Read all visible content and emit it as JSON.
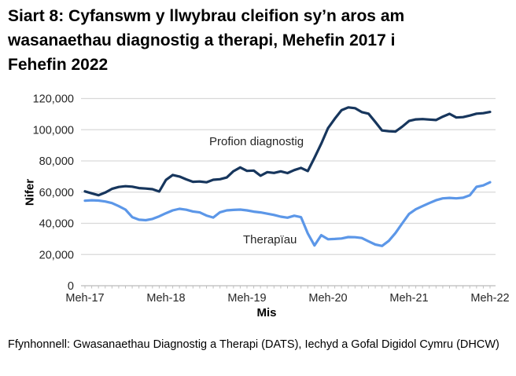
{
  "page": {
    "title": "Siart 8: Cyfanswm y llwybrau cleifion sy’n aros am wasanaethau diagnostig a therapi, Mehefin 2017 i Fehefin 2022",
    "source_note": "Ffynhonnell: Gwasanaethau Diagnostig a Therapi (DATS), Iechyd a Gofal Digidol Cymru (DHCW)"
  },
  "chart_data": {
    "type": "line",
    "title": "Siart 8: Cyfanswm y llwybrau cleifion sy’n aros am wasanaethau diagnostig a therapi, Mehefin 2017 i Fehefin 2022",
    "xlabel": "Mis",
    "ylabel": "Nifer",
    "ylim": [
      0,
      120000
    ],
    "grid": "horizontal",
    "legend_position": "inline-annotations",
    "x_unit": "month",
    "x_range_months": 60,
    "x_start": "Meh-17",
    "x_end": "Meh-22",
    "yticks": [
      {
        "value": 0,
        "label": "0"
      },
      {
        "value": 20000,
        "label": "20,000"
      },
      {
        "value": 40000,
        "label": "40,000"
      },
      {
        "value": 60000,
        "label": "60,000"
      },
      {
        "value": 80000,
        "label": "80,000"
      },
      {
        "value": 100000,
        "label": "100,000"
      },
      {
        "value": 120000,
        "label": "120,000"
      }
    ],
    "xticks": [
      {
        "month_index": 0,
        "label": "Meh-17"
      },
      {
        "month_index": 12,
        "label": "Meh-18"
      },
      {
        "month_index": 24,
        "label": "Meh-19"
      },
      {
        "month_index": 36,
        "label": "Meh-20"
      },
      {
        "month_index": 48,
        "label": "Meh-21"
      },
      {
        "month_index": 60,
        "label": "Meh-22"
      }
    ],
    "colors": {
      "diagnostig": "#17365D",
      "therapiau": "#5C97E8",
      "gridline": "#D9D9D9",
      "axis": "#BFBFBF"
    },
    "series": [
      {
        "name": "Profion diagnostig",
        "color_key": "diagnostig",
        "values": [
          60500,
          59200,
          58000,
          59700,
          62100,
          63300,
          63800,
          63500,
          62600,
          62300,
          61900,
          60400,
          67800,
          71000,
          70000,
          68200,
          66600,
          66800,
          66300,
          67900,
          68300,
          69400,
          73400,
          75800,
          73600,
          73800,
          70500,
          72800,
          72300,
          73300,
          72200,
          74100,
          75500,
          73500,
          82000,
          91000,
          101000,
          107000,
          112500,
          114300,
          113800,
          111300,
          110300,
          105000,
          99500,
          99000,
          98800,
          102000,
          105600,
          106600,
          106800,
          106500,
          106200,
          108400,
          110200,
          107800,
          108100,
          109100,
          110300,
          110600,
          111400
        ]
      },
      {
        "name": "Therapïau",
        "color_key": "therapiau",
        "values": [
          54500,
          54800,
          54600,
          54000,
          53000,
          51000,
          48800,
          44000,
          42300,
          42000,
          42800,
          44500,
          46500,
          48300,
          49300,
          48700,
          47600,
          47000,
          45000,
          43700,
          47100,
          48300,
          48600,
          48800,
          48300,
          47500,
          47000,
          46200,
          45400,
          44300,
          43600,
          44900,
          43900,
          33500,
          25800,
          32400,
          29800,
          30000,
          30300,
          31200,
          31100,
          30600,
          28500,
          26400,
          25500,
          28800,
          33800,
          40000,
          46000,
          49000,
          51000,
          53000,
          54800,
          56000,
          56300,
          56000,
          56400,
          58000,
          63400,
          64300,
          66300
        ]
      }
    ]
  }
}
